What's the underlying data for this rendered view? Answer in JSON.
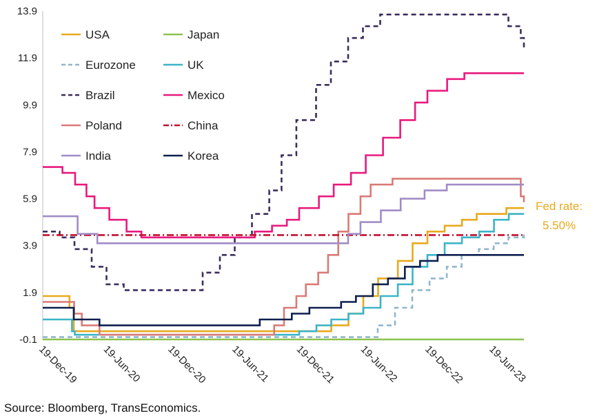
{
  "chart_data": {
    "type": "line",
    "step": true,
    "title": "",
    "xlabel": "",
    "ylabel": "",
    "xlim": [
      "2019-12-19",
      "2023-09-15"
    ],
    "ylim": [
      -0.1,
      13.9
    ],
    "yticks": [
      "13.9",
      "11.9",
      "9.9",
      "7.9",
      "5.9",
      "3.9",
      "1.9",
      "-0.1"
    ],
    "ytick_values": [
      13.9,
      11.9,
      9.9,
      7.9,
      5.9,
      3.9,
      1.9,
      -0.1
    ],
    "xticks": [
      "19-Dec-19",
      "19-Jun-20",
      "19-Dec-20",
      "19-Jun-21",
      "19-Dec-21",
      "19-Jun-22",
      "19-Dec-22",
      "19-Jun-23"
    ],
    "xtick_dates": [
      "2019-12-19",
      "2020-06-19",
      "2020-12-19",
      "2021-06-19",
      "2021-12-19",
      "2022-06-19",
      "2022-12-19",
      "2023-06-19"
    ],
    "grid": false,
    "legend_position": "top-left",
    "series": [
      {
        "name": "USA",
        "color": "#e8a91c",
        "dash": "solid",
        "dates": [
          "2019-12-19",
          "2020-03-04",
          "2020-03-16",
          "2022-03-17",
          "2022-05-05",
          "2022-06-16",
          "2022-07-28",
          "2022-09-22",
          "2022-11-03",
          "2022-12-15",
          "2023-02-02",
          "2023-03-23",
          "2023-05-04",
          "2023-07-27",
          "2023-09-15"
        ],
        "values": [
          1.75,
          1.25,
          0.25,
          0.5,
          1.0,
          1.75,
          2.5,
          3.25,
          4.0,
          4.5,
          4.75,
          5.0,
          5.25,
          5.5,
          5.5
        ]
      },
      {
        "name": "Japan",
        "color": "#8dc14f",
        "dash": "solid",
        "dates": [
          "2019-12-19",
          "2023-09-15"
        ],
        "values": [
          -0.1,
          -0.1
        ]
      },
      {
        "name": "Eurozone",
        "color": "#8fb6cc",
        "dash": "dash",
        "dates": [
          "2019-12-19",
          "2022-07-27",
          "2022-09-14",
          "2022-11-02",
          "2022-12-21",
          "2023-02-08",
          "2023-03-22",
          "2023-05-10",
          "2023-06-21",
          "2023-08-02",
          "2023-09-15"
        ],
        "values": [
          0.0,
          0.5,
          1.25,
          2.0,
          2.5,
          3.0,
          3.5,
          3.75,
          4.0,
          4.25,
          4.5
        ]
      },
      {
        "name": "UK",
        "color": "#3ab4c8",
        "dash": "solid",
        "dates": [
          "2019-12-19",
          "2020-03-11",
          "2020-03-19",
          "2021-12-16",
          "2022-02-03",
          "2022-03-17",
          "2022-05-05",
          "2022-06-16",
          "2022-08-04",
          "2022-09-22",
          "2022-11-03",
          "2022-12-15",
          "2023-02-02",
          "2023-03-23",
          "2023-05-11",
          "2023-06-22",
          "2023-08-03",
          "2023-09-15"
        ],
        "values": [
          0.75,
          0.25,
          0.1,
          0.25,
          0.5,
          0.75,
          1.0,
          1.25,
          1.75,
          2.25,
          3.0,
          3.5,
          4.0,
          4.25,
          4.5,
          5.0,
          5.25,
          5.25
        ]
      },
      {
        "name": "Brazil",
        "color": "#3b2d5e",
        "dash": "dash",
        "dates": [
          "2019-12-19",
          "2020-02-05",
          "2020-03-18",
          "2020-05-06",
          "2020-06-17",
          "2020-08-05",
          "2021-03-17",
          "2021-05-05",
          "2021-06-16",
          "2021-08-04",
          "2021-09-22",
          "2021-10-27",
          "2021-12-08",
          "2022-02-02",
          "2022-03-16",
          "2022-05-04",
          "2022-06-15",
          "2022-08-03",
          "2023-08-02",
          "2023-09-06",
          "2023-09-15"
        ],
        "values": [
          4.5,
          4.25,
          3.75,
          3.0,
          2.25,
          2.0,
          2.75,
          3.5,
          4.25,
          5.25,
          6.25,
          7.75,
          9.25,
          10.75,
          11.75,
          12.75,
          13.25,
          13.75,
          13.25,
          12.75,
          12.25
        ]
      },
      {
        "name": "Mexico",
        "color": "#e8197d",
        "dash": "solid",
        "dates": [
          "2019-12-19",
          "2020-02-13",
          "2020-03-20",
          "2020-04-21",
          "2020-05-14",
          "2020-06-25",
          "2020-08-13",
          "2020-09-24",
          "2021-06-24",
          "2021-08-12",
          "2021-09-30",
          "2021-11-11",
          "2021-12-16",
          "2022-02-10",
          "2022-03-24",
          "2022-05-12",
          "2022-06-23",
          "2022-08-11",
          "2022-09-29",
          "2022-11-10",
          "2022-12-15",
          "2023-02-09",
          "2023-03-30",
          "2023-09-15"
        ],
        "values": [
          7.25,
          7.0,
          6.5,
          6.0,
          5.5,
          5.0,
          4.5,
          4.25,
          4.25,
          4.5,
          4.75,
          5.0,
          5.5,
          6.0,
          6.5,
          7.0,
          7.75,
          8.5,
          9.25,
          10.0,
          10.5,
          11.0,
          11.25,
          11.25
        ]
      },
      {
        "name": "Poland",
        "color": "#d97a76",
        "dash": "solid",
        "dates": [
          "2019-12-19",
          "2020-03-17",
          "2020-04-08",
          "2020-05-28",
          "2021-10-06",
          "2021-11-03",
          "2021-12-08",
          "2022-01-04",
          "2022-02-08",
          "2022-03-08",
          "2022-04-06",
          "2022-05-05",
          "2022-06-08",
          "2022-07-07",
          "2022-09-07",
          "2023-09-06",
          "2023-09-15"
        ],
        "values": [
          1.5,
          1.0,
          0.5,
          0.1,
          0.5,
          1.25,
          1.75,
          2.25,
          2.75,
          3.5,
          4.5,
          5.25,
          6.0,
          6.5,
          6.75,
          6.0,
          5.75
        ]
      },
      {
        "name": "China",
        "color": "#c0102f",
        "dash": "dashdot",
        "dates": [
          "2019-12-19",
          "2023-09-15"
        ],
        "values": [
          4.35,
          4.35
        ]
      },
      {
        "name": "India",
        "color": "#a08cc6",
        "dash": "solid",
        "dates": [
          "2019-12-19",
          "2020-03-27",
          "2020-05-22",
          "2022-05-04",
          "2022-06-08",
          "2022-08-05",
          "2022-09-30",
          "2022-12-07",
          "2023-02-08",
          "2023-09-15"
        ],
        "values": [
          5.15,
          4.4,
          4.0,
          4.4,
          4.9,
          5.4,
          5.9,
          6.25,
          6.5,
          6.5
        ]
      },
      {
        "name": "Korea",
        "color": "#0d1f4f",
        "dash": "solid",
        "dates": [
          "2019-12-19",
          "2020-03-16",
          "2020-05-28",
          "2021-08-26",
          "2021-11-25",
          "2022-01-14",
          "2022-04-14",
          "2022-05-26",
          "2022-07-13",
          "2022-08-25",
          "2022-10-12",
          "2022-11-24",
          "2023-01-13",
          "2023-09-15"
        ],
        "values": [
          1.25,
          0.75,
          0.5,
          0.75,
          1.0,
          1.25,
          1.5,
          1.75,
          2.25,
          2.5,
          3.0,
          3.25,
          3.5,
          3.5
        ]
      }
    ],
    "annotations": [
      {
        "text": "Fed rate:",
        "color": "#e8a91c"
      },
      {
        "text": "5.50%",
        "color": "#e8a91c"
      }
    ]
  },
  "source": "Source: Bloomberg, TransEconomics."
}
